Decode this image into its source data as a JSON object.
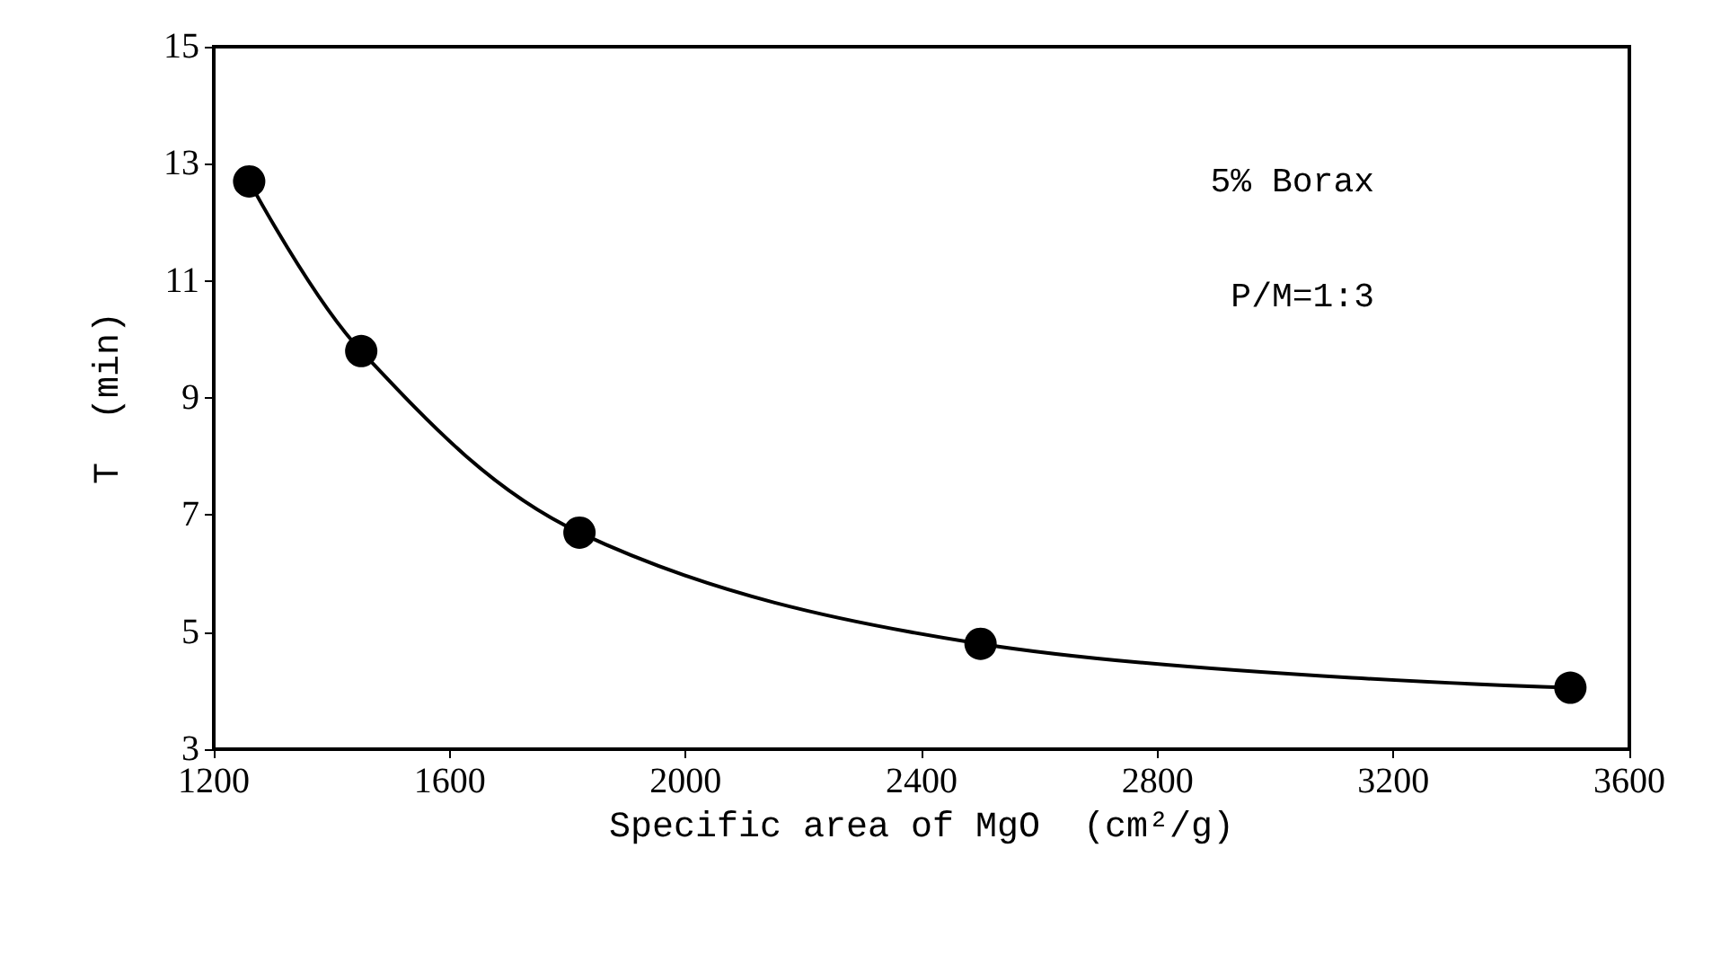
{
  "chart_data": {
    "type": "line",
    "xlabel": "Specific area of MgO  (cm²/g)",
    "ylabel": "T  (min)",
    "annotations": [
      "5% Borax",
      "P/M=1:3"
    ],
    "x": [
      1260,
      1450,
      1820,
      2500,
      3500
    ],
    "series": [
      {
        "color": "#000000",
        "values": [
          12.7,
          9.8,
          6.7,
          4.8,
          4.05
        ]
      }
    ],
    "xlim": [
      1200,
      3600
    ],
    "xticks": [
      1200,
      1600,
      2000,
      2400,
      2800,
      3200,
      3600
    ],
    "ylim": [
      3,
      15
    ],
    "yticks": [
      3,
      5,
      7,
      9,
      11,
      13,
      15
    ],
    "grid": false,
    "marker": "circle",
    "line_style": "solid"
  }
}
